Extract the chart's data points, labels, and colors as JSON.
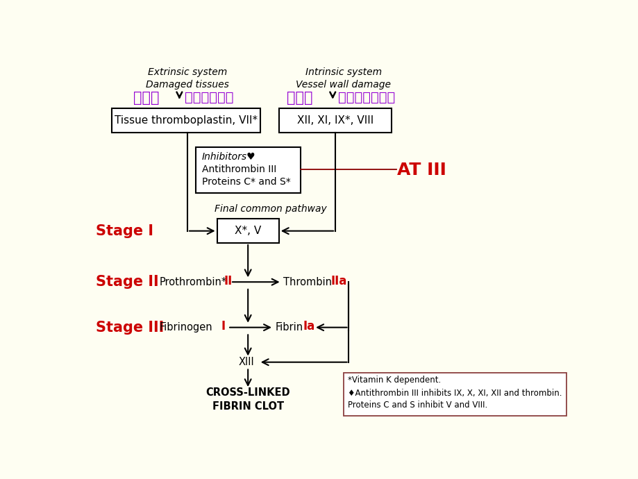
{
  "bg_color": "#FEFEF2",
  "extrinsic_label_en": "Extrinsic system\nDamaged tissues",
  "intrinsic_label_en": "Intrinsic system\nVessel wall damage",
  "extrinsic_cn": "外源性",
  "extrinsic_cn2": "（组织损伤）",
  "intrinsic_cn": "内源性",
  "intrinsic_cn2": "（血管壁损伤）",
  "extrinsic_box_text": "Tissue thromboplastin, VII*",
  "intrinsic_box_text": "XII, XI, IX*, VIII",
  "inhibitors_line1": "Inhibitors♥",
  "inhibitors_line2": "Antithrombin III",
  "inhibitors_line3": "Proteins C* and S*",
  "at_iii_label": "AT III",
  "final_pathway_label": "Final common pathway",
  "xv_box_text": "X*, V",
  "stage1_label": "Stage I",
  "stage2_label": "Stage II",
  "stage3_label": "Stage III",
  "prothrombin_text": "Prothrombin*",
  "II_label": "II",
  "thrombin_text": "Thrombin",
  "IIa_label": "IIa",
  "fibrinogen_text": "Fibrinogen",
  "I_label": "I",
  "fibrin_text": "Fibrin",
  "Ia_label": "Ia",
  "XIII_label": "XIII",
  "crosslinked_text": "CROSS-LINKED\nFIBRIN CLOT",
  "footnote_line1": "*Vitamin K dependent.",
  "footnote_line2": "♦Antithrombin III inhibits IX, X, XI, XII and thrombin.",
  "footnote_line3": "Proteins C and S inhibit V and VIII.",
  "purple_color": "#9400D3",
  "red_color": "#CC0000",
  "dark_red_line": "#8B0000",
  "black": "#000000",
  "white": "#FFFFFF"
}
